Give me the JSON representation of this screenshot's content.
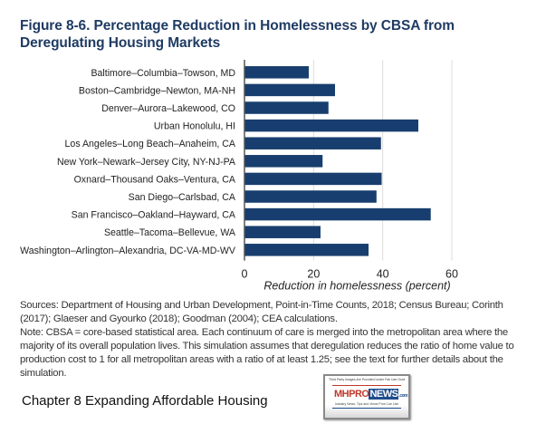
{
  "figure": {
    "title": "Figure 8-6. Percentage Reduction in Homelessness by CBSA from Deregulating Housing Markets"
  },
  "chart_data": {
    "type": "bar",
    "orientation": "horizontal",
    "title": "Figure 8-6. Percentage Reduction in Homelessness by CBSA from Deregulating Housing Markets",
    "xlabel": "Reduction in homelessness (percent)",
    "ylabel": "",
    "xlim": [
      0,
      60
    ],
    "xticks": [
      0,
      20,
      40,
      60
    ],
    "xtick_labels": [
      "0",
      "20",
      "40",
      "60"
    ],
    "grid": "vertical",
    "legend": "none",
    "bar_color": "#173e6e",
    "categories": [
      "Baltimore–Columbia–Towson, MD",
      "Boston–Cambridge–Newton, MA-NH",
      "Denver–Aurora–Lakewood, CO",
      "Urban Honolulu, HI",
      "Los Angeles–Long Beach–Anaheim, CA",
      "New York–Newark–Jersey City, NY-NJ-PA",
      "Oxnard–Thousand Oaks–Ventura, CA",
      "San Diego–Carlsbad, CA",
      "San Francisco–Oakland–Hayward, CA",
      "Seattle–Tacoma–Bellevue, WA",
      "Washington–Arlington–Alexandria, DC-VA-MD-WV"
    ],
    "values": [
      18.6,
      26.2,
      24.3,
      50.3,
      39.5,
      22.6,
      39.7,
      38.2,
      53.9,
      22.0,
      35.9
    ]
  },
  "notes": {
    "sources": "Sources: Department of Housing and Urban Development, Point-in-Time Counts, 2018;  Census Bureau; Corinth (2017); Glaeser and Gyourko (2018); Goodman (2004); CEA calculations.",
    "note": "Note: CBSA = core-based statistical area. Each continuum of care is merged into the metropolitan area where the majority of its overall population lives. This simulation assumes that deregulation reduces the ratio of home value to production cost to 1 for all metropolitan areas with a ratio of at least 1.25; see the text for further details about the simulation."
  },
  "caption": "Chapter 8 Expanding Affordable Housing",
  "logo": {
    "top_text": "Third Party Images Are Provided Under Fair Use Guidelines.",
    "brand_prefix": "MHPRO",
    "brand_highlight": "NEWS",
    "brand_suffix": ".com",
    "tagline": "Industry News, Tips and Views Pros Can Use"
  }
}
